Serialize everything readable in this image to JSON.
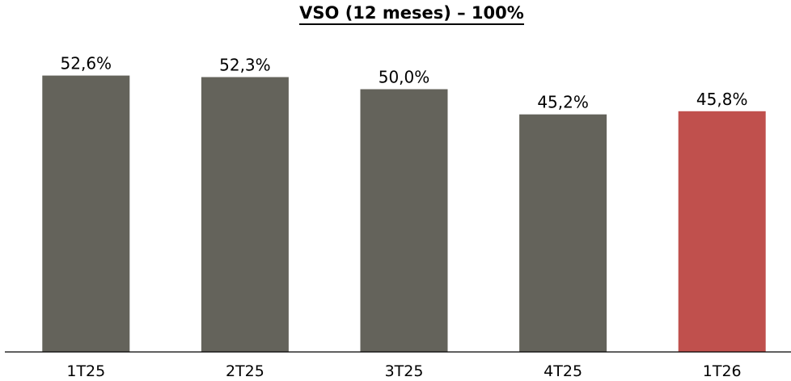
{
  "chart_data": {
    "type": "bar",
    "title": "VSO (12 meses) – 100%",
    "categories": [
      "1T25",
      "2T25",
      "3T25",
      "4T25",
      "1T26"
    ],
    "values": [
      52.6,
      52.3,
      50.0,
      45.2,
      45.8
    ],
    "value_labels": [
      "52,6%",
      "52,3%",
      "50,0%",
      "45,2%",
      "45,8%"
    ],
    "xlabel": "",
    "ylabel": "",
    "ylim": [
      0,
      60
    ],
    "grid": false,
    "legend": "none",
    "colors": {
      "default_bar": "#64635b",
      "highlight_bar": "#c0504d",
      "axis": "#000000",
      "text": "#000000"
    },
    "highlight_category": "1T26"
  }
}
